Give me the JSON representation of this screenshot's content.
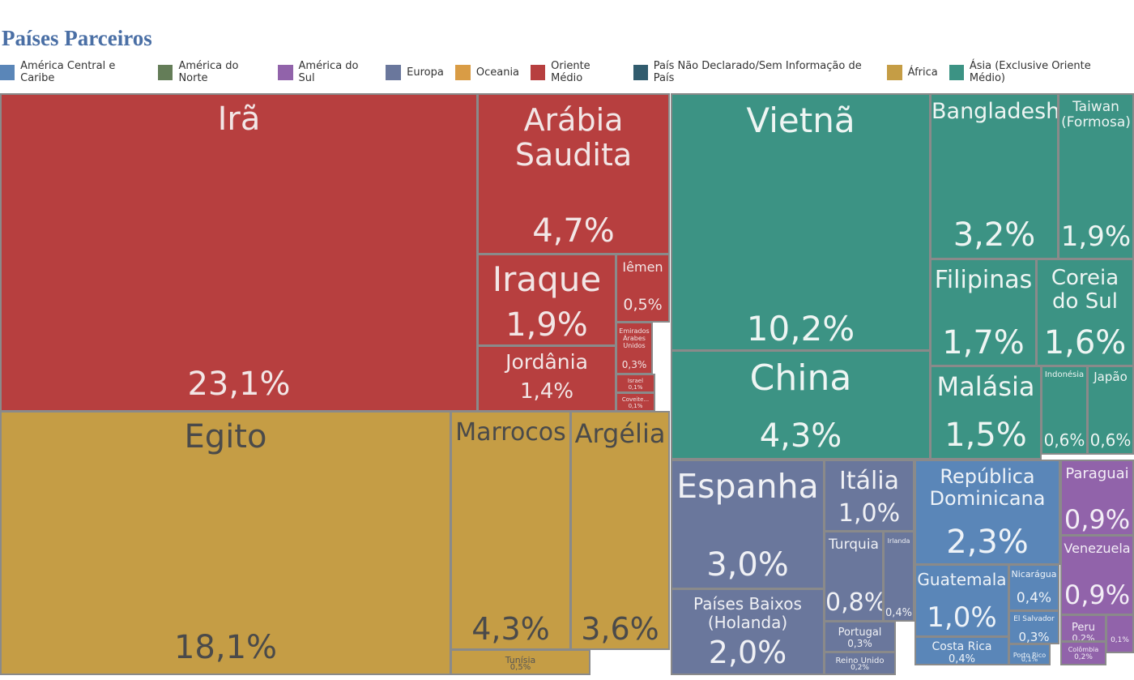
{
  "title": "Países Parceiros",
  "legend": [
    {
      "label": "América Central e Caribe",
      "color": "#5a86b8"
    },
    {
      "label": "América do Norte",
      "color": "#647d58"
    },
    {
      "label": "América do Sul",
      "color": "#9163aa"
    },
    {
      "label": "Europa",
      "color": "#6a779c"
    },
    {
      "label": "Oceania",
      "color": "#d99c45"
    },
    {
      "label": "Oriente Médio",
      "color": "#b73f3f"
    },
    {
      "label": "País Não Declarado/Sem Informação de País",
      "color": "#315c6e"
    },
    {
      "label": "África",
      "color": "#c59d45"
    },
    {
      "label": "Ásia (Exclusive Oriente Médio)",
      "color": "#3c9384"
    }
  ],
  "chart_data": {
    "type": "treemap",
    "title": "Países Parceiros",
    "unit": "%",
    "items": [
      {
        "name": "Irã",
        "value": "23,1%",
        "group": "Oriente Médio"
      },
      {
        "name": "Arábia Saudita",
        "value": "4,7%",
        "group": "Oriente Médio"
      },
      {
        "name": "Iraque",
        "value": "1,9%",
        "group": "Oriente Médio"
      },
      {
        "name": "Iêmen",
        "value": "0,5%",
        "group": "Oriente Médio"
      },
      {
        "name": "Jordânia",
        "value": "1,4%",
        "group": "Oriente Médio"
      },
      {
        "name": "Emirados Árabes Unidos",
        "value": "0,3%",
        "group": "Oriente Médio"
      },
      {
        "name": "Israel",
        "value": "0,1%",
        "group": "Oriente Médio"
      },
      {
        "name": "Coveite...",
        "value": "0,1%",
        "group": "Oriente Médio"
      },
      {
        "name": "Egito",
        "value": "18,1%",
        "group": "África"
      },
      {
        "name": "Marrocos",
        "value": "4,3%",
        "group": "África"
      },
      {
        "name": "Argélia",
        "value": "3,6%",
        "group": "África"
      },
      {
        "name": "Tunísia",
        "value": "0,5%",
        "group": "África"
      },
      {
        "name": "Vietnã",
        "value": "10,2%",
        "group": "Ásia (Exclusive Oriente Médio)"
      },
      {
        "name": "China",
        "value": "4,3%",
        "group": "Ásia (Exclusive Oriente Médio)"
      },
      {
        "name": "Bangladesh",
        "value": "3,2%",
        "group": "Ásia (Exclusive Oriente Médio)"
      },
      {
        "name": "Taiwan (Formosa)",
        "value": "1,9%",
        "group": "Ásia (Exclusive Oriente Médio)"
      },
      {
        "name": "Filipinas",
        "value": "1,7%",
        "group": "Ásia (Exclusive Oriente Médio)"
      },
      {
        "name": "Coreia do Sul",
        "value": "1,6%",
        "group": "Ásia (Exclusive Oriente Médio)"
      },
      {
        "name": "Malásia",
        "value": "1,5%",
        "group": "Ásia (Exclusive Oriente Médio)"
      },
      {
        "name": "Indonésia",
        "value": "0,6%",
        "group": "Ásia (Exclusive Oriente Médio)"
      },
      {
        "name": "Japão",
        "value": "0,6%",
        "group": "Ásia (Exclusive Oriente Médio)"
      },
      {
        "name": "Espanha",
        "value": "3,0%",
        "group": "Europa"
      },
      {
        "name": "Itália",
        "value": "1,0%",
        "group": "Europa"
      },
      {
        "name": "Turquia",
        "value": "0,8%",
        "group": "Europa"
      },
      {
        "name": "Irlanda",
        "value": "0,4%",
        "group": "Europa"
      },
      {
        "name": "Países Baixos (Holanda)",
        "value": "2,0%",
        "group": "Europa"
      },
      {
        "name": "Portugal",
        "value": "0,3%",
        "group": "Europa"
      },
      {
        "name": "Reino Unido",
        "value": "0,2%",
        "group": "Europa"
      },
      {
        "name": "República Dominicana",
        "value": "2,3%",
        "group": "América Central e Caribe"
      },
      {
        "name": "Guatemala",
        "value": "1,0%",
        "group": "América Central e Caribe"
      },
      {
        "name": "Nicarágua",
        "value": "0,4%",
        "group": "América Central e Caribe"
      },
      {
        "name": "El Salvador",
        "value": "0,3%",
        "group": "América Central e Caribe"
      },
      {
        "name": "Costa Rica",
        "value": "0,4%",
        "group": "América Central e Caribe"
      },
      {
        "name": "Porto Rico",
        "value": "0,1%",
        "group": "América Central e Caribe"
      },
      {
        "name": "Paraguai",
        "value": "0,9%",
        "group": "América do Sul"
      },
      {
        "name": "Venezuela",
        "value": "0,9%",
        "group": "América do Sul"
      },
      {
        "name": "Peru",
        "value": "0,2%",
        "group": "América do Sul"
      },
      {
        "name": "Colômbia",
        "value": "0,2%",
        "group": "América do Sul"
      },
      {
        "name": "",
        "value": "0,1%",
        "group": "América do Sul"
      }
    ]
  }
}
